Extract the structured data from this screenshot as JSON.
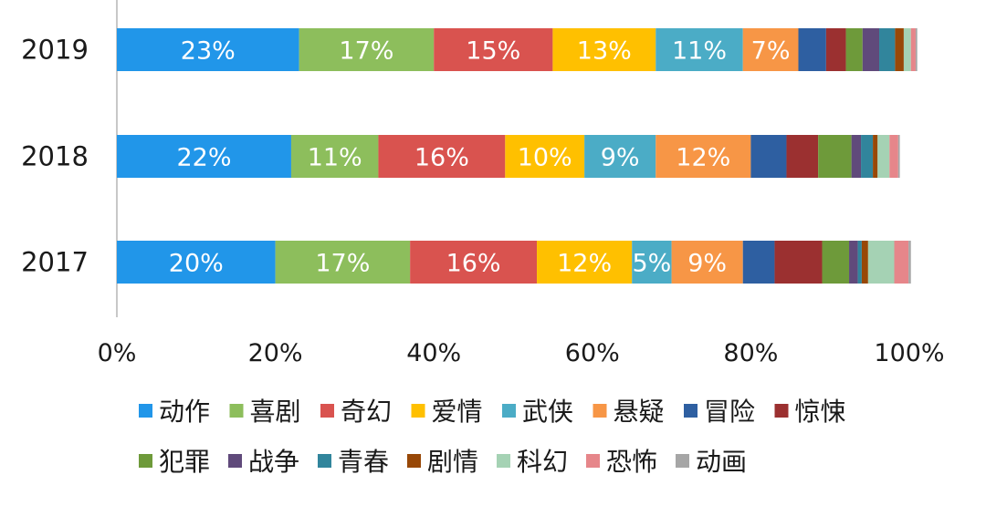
{
  "chart_data": {
    "type": "bar",
    "stacked": true,
    "orientation": "horizontal",
    "percent_stacked": true,
    "categories": [
      "2019",
      "2018",
      "2017"
    ],
    "xlim": [
      0,
      100
    ],
    "x_ticks": [
      "0%",
      "20%",
      "40%",
      "60%",
      "80%",
      "100%"
    ],
    "grid": false,
    "legend_position": "bottom",
    "series": [
      {
        "name": "动作",
        "color": "#2196E9",
        "values": [
          23,
          22,
          20
        ],
        "labels": [
          "23%",
          "22%",
          "20%"
        ]
      },
      {
        "name": "喜剧",
        "color": "#8DBE5C",
        "values": [
          17,
          11,
          17
        ],
        "labels": [
          "17%",
          "11%",
          "17%"
        ]
      },
      {
        "name": "奇幻",
        "color": "#D9534F",
        "values": [
          15,
          16,
          16
        ],
        "labels": [
          "15%",
          "16%",
          "16%"
        ]
      },
      {
        "name": "爱情",
        "color": "#FFC000",
        "values": [
          13,
          10,
          12
        ],
        "labels": [
          "13%",
          "10%",
          "12%"
        ]
      },
      {
        "name": "武侠",
        "color": "#4BACC6",
        "values": [
          11,
          9,
          5
        ],
        "labels": [
          "11%",
          "9%",
          "5%"
        ]
      },
      {
        "name": "悬疑",
        "color": "#F79646",
        "values": [
          7,
          12,
          9
        ],
        "labels": [
          "7%",
          "12%",
          "9%"
        ]
      },
      {
        "name": "冒险",
        "color": "#2E5FA1",
        "values": [
          3.5,
          4.5,
          4
        ],
        "labels": [
          "",
          "",
          ""
        ]
      },
      {
        "name": "惊悚",
        "color": "#9B3030",
        "values": [
          2.5,
          4,
          6
        ],
        "labels": [
          "",
          "",
          ""
        ]
      },
      {
        "name": "犯罪",
        "color": "#6E9A3A",
        "values": [
          2.1,
          4.2,
          3.4
        ],
        "labels": [
          "",
          "",
          ""
        ]
      },
      {
        "name": "战争",
        "color": "#604A7B",
        "values": [
          2.1,
          1.2,
          1.1
        ],
        "labels": [
          "",
          "",
          ""
        ]
      },
      {
        "name": "青春",
        "color": "#31859C",
        "values": [
          2,
          1.5,
          0.5
        ],
        "labels": [
          "",
          "",
          ""
        ]
      },
      {
        "name": "剧情",
        "color": "#984807",
        "values": [
          1.1,
          0.6,
          0.8
        ],
        "labels": [
          "",
          "",
          ""
        ]
      },
      {
        "name": "科幻",
        "color": "#A5D2B4",
        "values": [
          0.9,
          1.5,
          3.3
        ],
        "labels": [
          "",
          "",
          ""
        ]
      },
      {
        "name": "恐怖",
        "color": "#E6868A",
        "values": [
          0.6,
          1.1,
          1.8
        ],
        "labels": [
          "",
          "",
          ""
        ]
      },
      {
        "name": "动画",
        "color": "#A6A6A6",
        "values": [
          0.2,
          0.2,
          0.3
        ],
        "labels": [
          "",
          "",
          ""
        ]
      }
    ]
  }
}
